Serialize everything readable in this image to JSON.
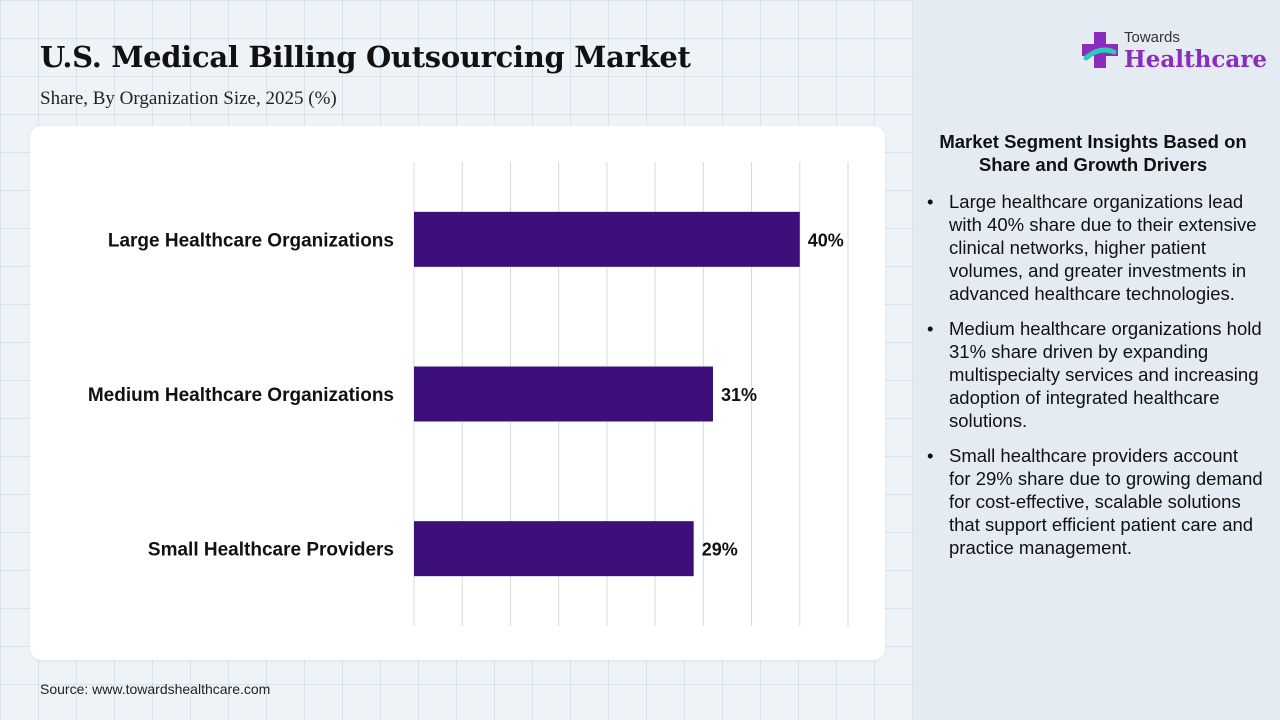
{
  "header": {
    "title": "U.S. Medical Billing Outsourcing Market",
    "subtitle": "Share, By Organization Size, 2025 (%)"
  },
  "logo": {
    "top_text": "Towards",
    "brand_text": "Healthcare",
    "icon": "cross-plus-icon",
    "color": "#8a2dbf"
  },
  "chart_data": {
    "type": "bar",
    "orientation": "horizontal",
    "categories": [
      "Large Healthcare Organizations",
      "Medium Healthcare Organizations",
      "Small Healthcare Providers"
    ],
    "values": [
      40,
      31,
      29
    ],
    "value_labels": [
      "40%",
      "31%",
      "29%"
    ],
    "xlim": [
      0,
      45
    ],
    "grid": true,
    "bar_color": "#3c0f7a"
  },
  "insights": {
    "title": "Market Segment Insights Based on Share and Growth Drivers",
    "items": [
      "Large healthcare organizations lead with 40% share due to their extensive clinical networks, higher patient volumes, and greater investments in advanced healthcare technologies.",
      "Medium healthcare organizations hold 31% share driven by expanding multispecialty services and increasing adoption of integrated healthcare solutions.",
      "Small healthcare providers account for 29% share due to growing demand for cost-effective, scalable solutions that support efficient patient care and practice management."
    ]
  },
  "footer": {
    "source": "Source: www.towardshealthcare.com"
  }
}
